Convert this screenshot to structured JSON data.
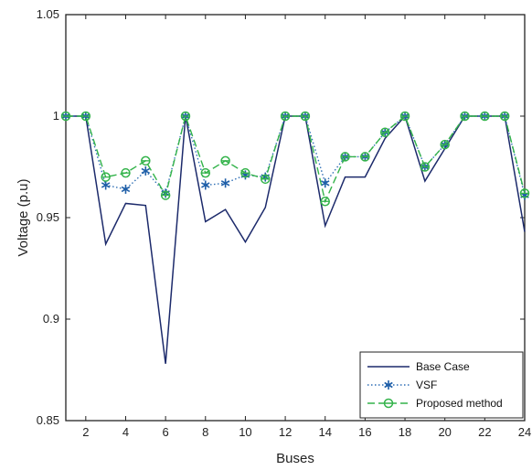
{
  "chart_data": {
    "type": "line",
    "xlabel": "Buses",
    "ylabel": "Voltage (p.u)",
    "xlim": [
      1,
      24
    ],
    "ylim": [
      0.85,
      1.05
    ],
    "x_ticks": [
      2,
      4,
      6,
      8,
      10,
      12,
      14,
      16,
      18,
      20,
      22,
      24
    ],
    "y_ticks": [
      "0.85",
      "0.9",
      "0.95",
      "1",
      "1.05"
    ],
    "y_tick_values": [
      0.85,
      0.9,
      0.95,
      1.0,
      1.05
    ],
    "grid": false,
    "legend_position": "bottom-right",
    "x": [
      1,
      2,
      3,
      4,
      5,
      6,
      7,
      8,
      9,
      10,
      11,
      12,
      13,
      14,
      15,
      16,
      17,
      18,
      19,
      20,
      21,
      22,
      23,
      24
    ],
    "series": [
      {
        "name": "Base Case",
        "style": "solid",
        "marker": "none",
        "color": "#1c2a6b",
        "values": [
          1.0,
          1.0,
          0.937,
          0.957,
          0.956,
          0.878,
          1.0,
          0.948,
          0.954,
          0.938,
          0.955,
          1.0,
          1.0,
          0.946,
          0.97,
          0.97,
          0.989,
          1.0,
          0.968,
          0.984,
          1.0,
          1.0,
          1.0,
          0.943
        ]
      },
      {
        "name": "VSF",
        "style": "dotted",
        "marker": "asterisk",
        "color": "#2f6fb5",
        "values": [
          1.0,
          1.0,
          0.966,
          0.964,
          0.973,
          0.962,
          1.0,
          0.966,
          0.967,
          0.971,
          0.97,
          1.0,
          1.0,
          0.967,
          0.98,
          0.98,
          0.992,
          1.0,
          0.975,
          0.986,
          1.0,
          1.0,
          1.0,
          0.961
        ]
      },
      {
        "name": "Proposed method",
        "style": "dashed",
        "marker": "circle",
        "color": "#33b34a",
        "values": [
          1.0,
          1.0,
          0.97,
          0.972,
          0.978,
          0.961,
          1.0,
          0.972,
          0.978,
          0.972,
          0.969,
          1.0,
          1.0,
          0.958,
          0.98,
          0.98,
          0.992,
          1.0,
          0.975,
          0.986,
          1.0,
          1.0,
          1.0,
          0.962
        ]
      }
    ]
  }
}
